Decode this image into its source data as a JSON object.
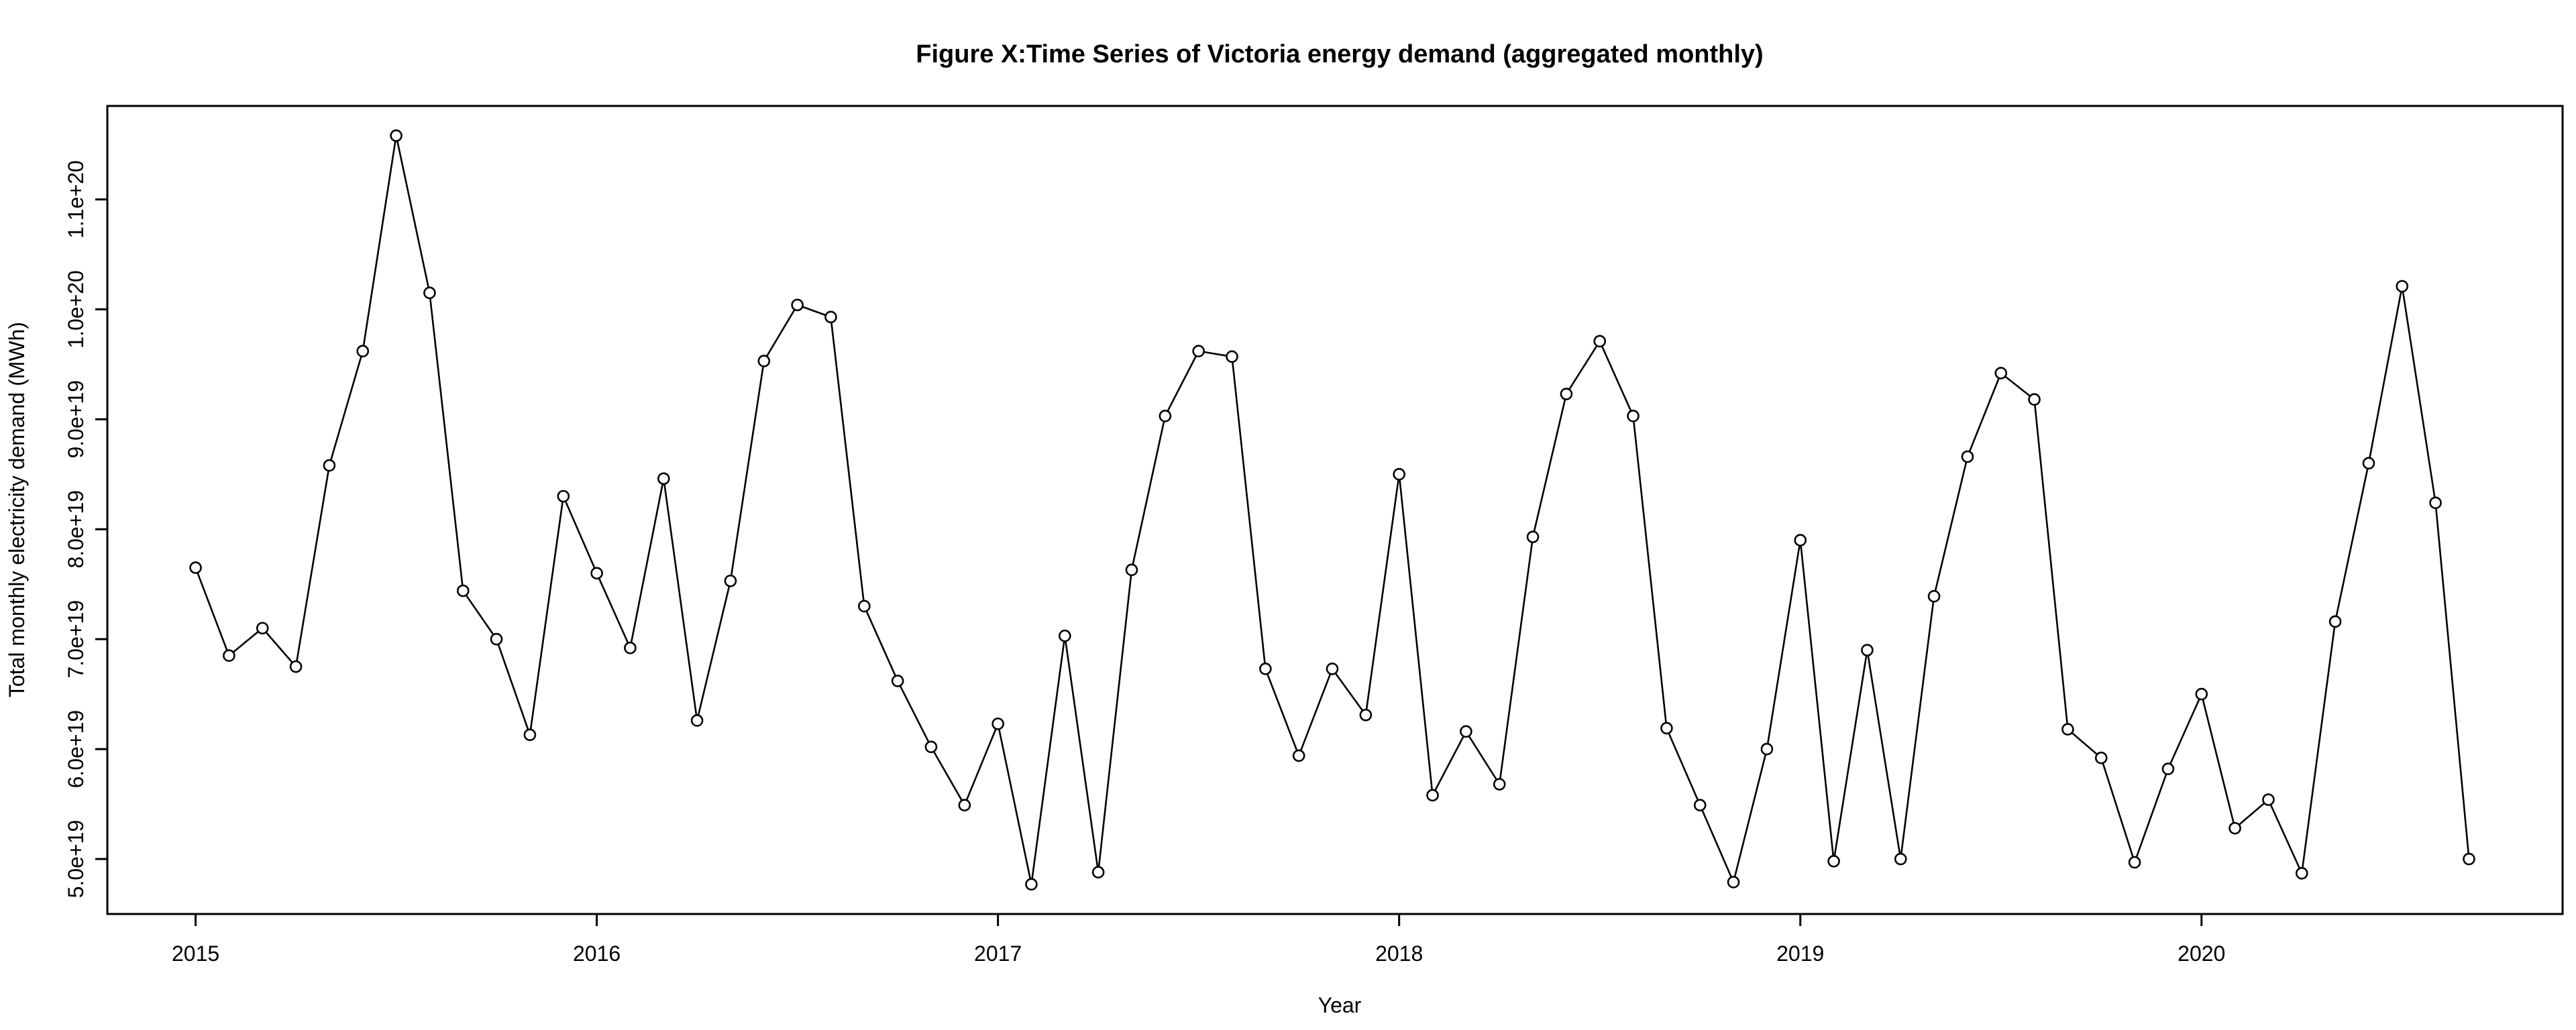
{
  "chart_data": {
    "type": "line",
    "title": "Figure X:Time Series of Victoria energy demand (aggregated monthly)",
    "xlabel": "Year",
    "ylabel": "Total monthly electricity demand (MWh)",
    "x_ticks": [
      2015,
      2016,
      2017,
      2018,
      2019,
      2020
    ],
    "x_tick_labels": [
      "2015",
      "2016",
      "2017",
      "2018",
      "2019",
      "2020"
    ],
    "y_ticks": [
      5e+19,
      6e+19,
      7e+19,
      8e+19,
      9e+19,
      1e+20,
      1.1e+20
    ],
    "y_tick_labels": [
      "5.0e+19",
      "6.0e+19",
      "7.0e+19",
      "8.0e+19",
      "9.0e+19",
      "1.0e+20",
      "1.1e+20"
    ],
    "xlim": [
      2014.78,
      2020.9
    ],
    "ylim": [
      4.5e+19,
      1.185e+20
    ],
    "grid": false,
    "marker": "open-circle",
    "line_color": "#000000",
    "series": [
      {
        "x": [
          2015.0,
          2015.0833,
          2015.1667,
          2015.25,
          2015.3333,
          2015.4167,
          2015.5,
          2015.5833,
          2015.6667,
          2015.75,
          2015.8333,
          2015.9167,
          2016.0,
          2016.0833,
          2016.1667,
          2016.25,
          2016.3333,
          2016.4167,
          2016.5,
          2016.5833,
          2016.6667,
          2016.75,
          2016.8333,
          2016.9167,
          2017.0,
          2017.0833,
          2017.1667,
          2017.25,
          2017.3333,
          2017.4167,
          2017.5,
          2017.5833,
          2017.6667,
          2017.75,
          2017.8333,
          2017.9167,
          2018.0,
          2018.0833,
          2018.1667,
          2018.25,
          2018.3333,
          2018.4167,
          2018.5,
          2018.5833,
          2018.6667,
          2018.75,
          2018.8333,
          2018.9167,
          2019.0,
          2019.0833,
          2019.1667,
          2019.25,
          2019.3333,
          2019.4167,
          2019.5,
          2019.5833,
          2019.6667,
          2019.75,
          2019.8333,
          2019.9167,
          2020.0,
          2020.0833,
          2020.1667,
          2020.25,
          2020.3333,
          2020.4167,
          2020.5,
          2020.5833,
          2020.6667
        ],
        "values": [
          7.65e+19,
          6.85e+19,
          7.1e+19,
          6.75e+19,
          8.58e+19,
          9.62e+19,
          1.158e+20,
          1.015e+20,
          7.44e+19,
          7e+19,
          6.13e+19,
          8.3e+19,
          7.6e+19,
          6.92e+19,
          8.46e+19,
          6.26e+19,
          7.53e+19,
          9.53e+19,
          1.004e+20,
          9.93e+19,
          7.3e+19,
          6.62e+19,
          6.02e+19,
          5.49e+19,
          6.23e+19,
          4.77e+19,
          7.03e+19,
          4.88e+19,
          7.63e+19,
          9.03e+19,
          9.62e+19,
          9.57e+19,
          6.73e+19,
          5.94e+19,
          6.73e+19,
          6.31e+19,
          8.5e+19,
          5.58e+19,
          6.16e+19,
          5.68e+19,
          7.93e+19,
          9.23e+19,
          9.71e+19,
          9.03e+19,
          6.19e+19,
          5.49e+19,
          4.79e+19,
          6e+19,
          7.9e+19,
          4.98e+19,
          6.9e+19,
          5e+19,
          7.39e+19,
          8.66e+19,
          9.42e+19,
          9.18e+19,
          6.18e+19,
          5.92e+19,
          4.97e+19,
          5.82e+19,
          6.5e+19,
          5.28e+19,
          5.54e+19,
          4.87e+19,
          7.16e+19,
          8.6e+19,
          1.021e+20,
          8.24e+19,
          5e+19
        ]
      }
    ]
  }
}
